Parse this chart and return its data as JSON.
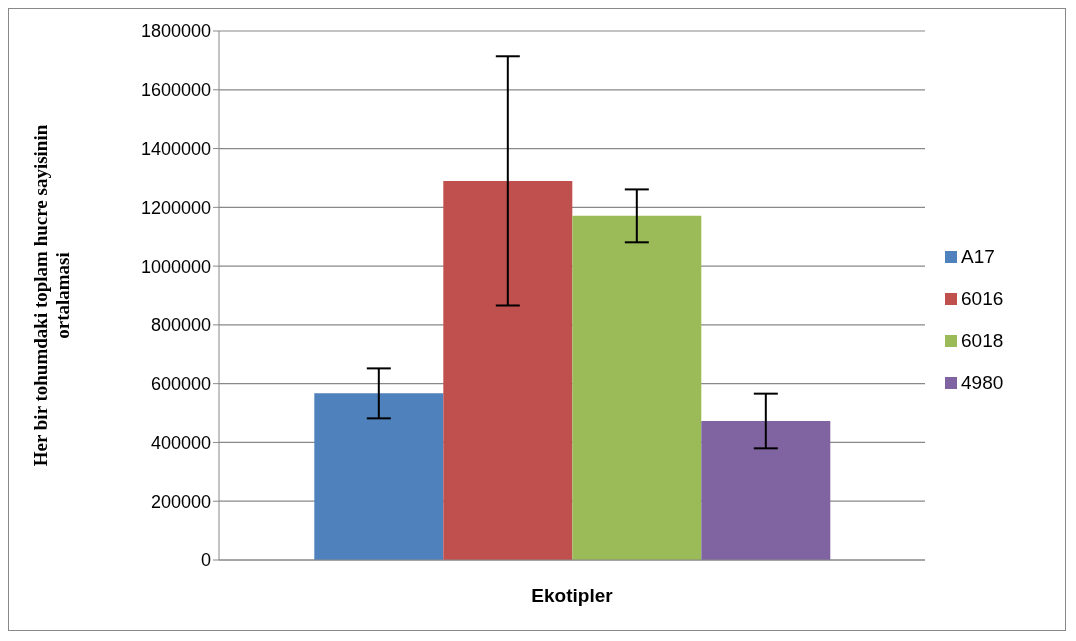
{
  "chart_data": {
    "type": "bar",
    "xlabel": "Ekotipler",
    "ylabel": "Her bir tohumdaki toplam hucre sayisinin ortalamasi",
    "categories": [
      null
    ],
    "series": [
      {
        "name": "A17",
        "color": "#4f81bd",
        "values": [
          567000
        ],
        "errors": [
          85000
        ]
      },
      {
        "name": "6016",
        "color": "#c0504d",
        "values": [
          1290000
        ],
        "errors": [
          424000
        ]
      },
      {
        "name": "6018",
        "color": "#9bbb59",
        "values": [
          1171000
        ],
        "errors": [
          90000
        ]
      },
      {
        "name": "4980",
        "color": "#8064a2",
        "values": [
          473000
        ],
        "errors": [
          93000
        ]
      }
    ],
    "ylim": [
      0,
      1800000
    ],
    "yticks": [
      0,
      200000,
      400000,
      600000,
      800000,
      1000000,
      1200000,
      1400000,
      1600000,
      1800000
    ],
    "grid": "y",
    "legend": "right"
  }
}
